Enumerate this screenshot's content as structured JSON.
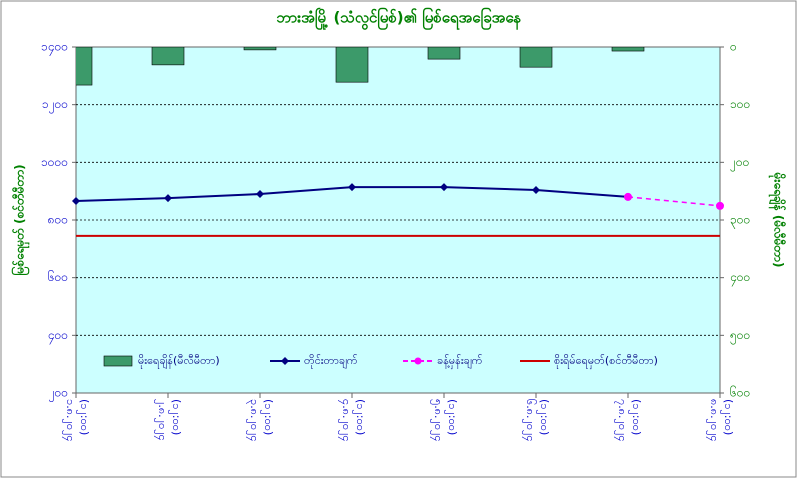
{
  "chart_data": {
    "type": "combo",
    "title": "ဘားအံမြို့ (သံလွင်မြစ်)၏ မြစ်ရေအခြေအနေ",
    "y_label": "မြစ်ရေမှတ် (စင်တီမီတာ)",
    "y2_label": "မိုးရေချိန် (မီလီမီတာ)",
    "categories": [
      [
        "၁.၈.၂၀၂၄",
        "(၁၂:၀၀)"
      ],
      [
        "၂.၈.၂၀၂၄",
        "(၁၂:၀၀)"
      ],
      [
        "၃.၈.၂၀၂၄",
        "(၁၂:၀၀)"
      ],
      [
        "၄.၈.၂၀၂၄",
        "(၁၂:၀၀)"
      ],
      [
        "၅.၈.၂၀၂၄",
        "(၁၂:၀၀)"
      ],
      [
        "၆.၈.၂၀၂၄",
        "(၁၂:၀၀)"
      ],
      [
        "၇.၈.၂၀၂၄",
        "(၁၂:၀၀)"
      ],
      [
        "၈.၈.၂၀၂၄",
        "(၁၂:၀၀)"
      ]
    ],
    "ylim": [
      200,
      1400
    ],
    "yticks": [
      {
        "value": 1400,
        "label": "၁၄၀၀"
      },
      {
        "value": 1200,
        "label": "၁၂၀၀"
      },
      {
        "value": 1000,
        "label": "၁၀၀၀"
      },
      {
        "value": 800,
        "label": "၈၀၀"
      },
      {
        "value": 600,
        "label": "၆၀၀"
      },
      {
        "value": 400,
        "label": "၄၀၀"
      },
      {
        "value": 200,
        "label": "၂၀၀"
      }
    ],
    "y2lim": [
      0,
      600
    ],
    "y2_inverted": true,
    "y2ticks": [
      {
        "value": 0,
        "label": "၀"
      },
      {
        "value": 100,
        "label": "၁၀၀"
      },
      {
        "value": 200,
        "label": "၂၀၀"
      },
      {
        "value": 300,
        "label": "၃၀၀"
      },
      {
        "value": 400,
        "label": "၄၀၀"
      },
      {
        "value": 500,
        "label": "၅၀၀"
      },
      {
        "value": 600,
        "label": "၆၀၀"
      }
    ],
    "grid": true,
    "series": [
      {
        "name": "မိုးရေချိန်(မီလီမီတာ)",
        "type": "bar",
        "axis": "y2",
        "color": "#3c9a6a",
        "values": [
          66,
          31,
          5,
          61,
          21,
          35,
          7,
          null
        ]
      },
      {
        "name": "တိုင်းတာချက်",
        "type": "line",
        "color": "#000080",
        "values": [
          866,
          876,
          890,
          914,
          914,
          904,
          880,
          null
        ]
      },
      {
        "name": "ခန့်မှန်းချက်",
        "type": "line",
        "dashed": true,
        "color": "#ff00ff",
        "values": [
          null,
          null,
          null,
          null,
          null,
          null,
          880,
          849
        ]
      },
      {
        "name": "စိုးရိမ်ရေမှတ်(စင်တီမီတာ)",
        "type": "hline",
        "color": "#cc0000",
        "value": 745
      }
    ]
  }
}
